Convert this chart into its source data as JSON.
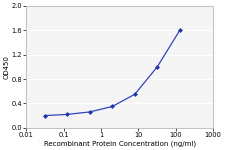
{
  "x_data": [
    0.03125,
    0.125,
    0.5,
    2,
    8,
    32,
    128
  ],
  "y_data": [
    0.2,
    0.22,
    0.26,
    0.35,
    0.55,
    1.0,
    1.6
  ],
  "line_color": "#3344bb",
  "marker_color": "#2233aa",
  "xlabel": "Recombinant Protein Concentration (ng/ml)",
  "ylabel": "OD450",
  "xlim": [
    0.01,
    1000
  ],
  "ylim": [
    0,
    2.0
  ],
  "yticks": [
    0,
    0.4,
    0.8,
    1.2,
    1.6,
    2.0
  ],
  "xticks": [
    0.01,
    0.1,
    1,
    10,
    100,
    1000
  ],
  "xtick_labels": [
    "0.01",
    "0.1",
    "1",
    "10",
    "100",
    "1000"
  ],
  "bg_color": "#f5f5f5",
  "fig_bg_color": "#ffffff",
  "grid_color": "#ffffff",
  "axis_fontsize": 5.0,
  "tick_fontsize": 4.8,
  "linewidth": 0.9,
  "markersize": 2.2
}
